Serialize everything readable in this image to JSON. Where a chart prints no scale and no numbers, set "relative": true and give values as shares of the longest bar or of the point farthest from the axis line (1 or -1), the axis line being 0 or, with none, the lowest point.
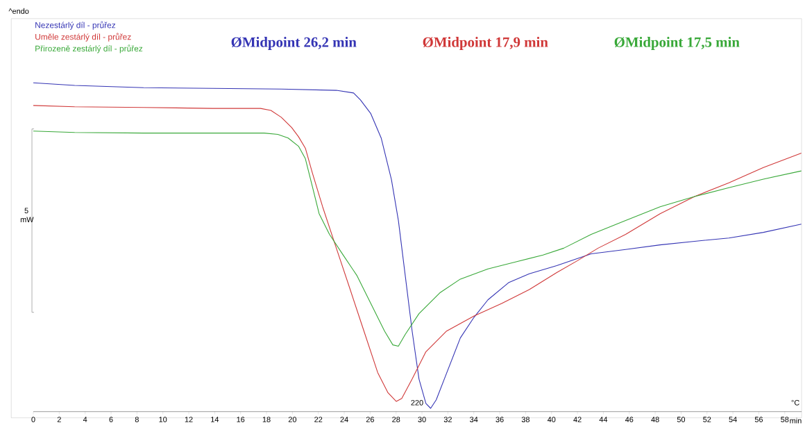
{
  "chart_data": {
    "type": "line",
    "relative": true,
    "xlabel": "min",
    "xlim": [
      0,
      59.3
    ],
    "xticks": [
      0,
      2,
      4,
      6,
      8,
      10,
      12,
      14,
      16,
      18,
      20,
      22,
      24,
      26,
      28,
      30,
      32,
      34,
      36,
      38,
      40,
      42,
      44,
      46,
      48,
      50,
      52,
      54,
      56,
      58
    ],
    "legend": "top left",
    "marker": "none",
    "line_style": "solid",
    "grid": false,
    "annotations": [
      "ØMidpoint 26,2 min",
      "ØMidpoint 17,9 min",
      "ØMidpoint 17,5 min",
      "^endo",
      "5 mW",
      "220",
      "°C"
    ],
    "series": [
      {
        "name": "Nezestárlý díl - průřez",
        "color": "#3434b4",
        "x": [
          0,
          3.19,
          8.51,
          13.82,
          19.14,
          23.39,
          24.72,
          25.25,
          26.05,
          26.85,
          27.64,
          28.18,
          28.71,
          29.24,
          29.77,
          30.3,
          30.67,
          31.1,
          31.9,
          32.96,
          34.02,
          35.09,
          36.68,
          38.28,
          40.4,
          43.06,
          45.72,
          48.38,
          51.04,
          53.69,
          56.35,
          59.28
        ],
        "values": [
          1,
          0.992,
          0.985,
          0.983,
          0.981,
          0.977,
          0.969,
          0.948,
          0.906,
          0.832,
          0.706,
          0.581,
          0.413,
          0.245,
          0.099,
          0.025,
          0.01,
          0.036,
          0.117,
          0.224,
          0.287,
          0.34,
          0.392,
          0.419,
          0.444,
          0.48,
          0.493,
          0.507,
          0.518,
          0.528,
          0.545,
          0.57
        ]
      },
      {
        "name": "Uměle zestárlý díl - průřez",
        "color": "#d03838",
        "x": [
          0,
          3.19,
          8.51,
          13.82,
          17.54,
          18.34,
          19.14,
          19.94,
          20.47,
          21.0,
          21.53,
          22.33,
          23.39,
          24.46,
          25.52,
          26.58,
          27.38,
          28.02,
          28.44,
          29.24,
          30.3,
          31.9,
          34.02,
          36.15,
          38.28,
          40.4,
          42.0,
          43.59,
          45.72,
          48.38,
          51.04,
          53.69,
          56.35,
          59.28
        ],
        "values": [
          0.931,
          0.927,
          0.925,
          0.922,
          0.922,
          0.916,
          0.895,
          0.864,
          0.836,
          0.801,
          0.727,
          0.623,
          0.497,
          0.371,
          0.245,
          0.119,
          0.057,
          0.031,
          0.04,
          0.099,
          0.182,
          0.245,
          0.291,
          0.329,
          0.371,
          0.423,
          0.459,
          0.497,
          0.539,
          0.602,
          0.654,
          0.696,
          0.742,
          0.786
        ]
      },
      {
        "name": "Přirozeně zestárlý díl - průřez",
        "color": "#38a838",
        "x": [
          0,
          3.19,
          8.51,
          13.82,
          17.81,
          18.87,
          19.67,
          20.47,
          21.0,
          21.53,
          22.06,
          22.86,
          23.92,
          24.99,
          26.05,
          27.11,
          27.75,
          28.18,
          28.71,
          29.77,
          31.37,
          32.96,
          35.09,
          37.21,
          39.34,
          40.94,
          43.06,
          45.72,
          48.38,
          51.04,
          53.69,
          56.35,
          59.28
        ],
        "values": [
          0.853,
          0.849,
          0.847,
          0.847,
          0.847,
          0.843,
          0.832,
          0.807,
          0.769,
          0.686,
          0.602,
          0.539,
          0.476,
          0.413,
          0.329,
          0.245,
          0.203,
          0.199,
          0.235,
          0.298,
          0.361,
          0.403,
          0.434,
          0.455,
          0.476,
          0.497,
          0.539,
          0.581,
          0.623,
          0.654,
          0.681,
          0.707,
          0.732
        ]
      }
    ]
  }
}
